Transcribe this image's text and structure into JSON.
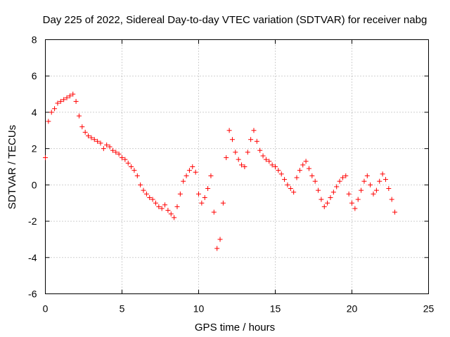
{
  "chart_data": {
    "type": "scatter",
    "title": "Day 225 of 2022, Sidereal Day-to-day VTEC variation (SDTVAR) for receiver nabg",
    "xlabel": "GPS time / hours",
    "ylabel": "SDTVAR / TECUs",
    "xlim": [
      0,
      25
    ],
    "ylim": [
      -6,
      8
    ],
    "xticks": [
      0,
      5,
      10,
      15,
      20,
      25
    ],
    "yticks": [
      -6,
      -4,
      -2,
      0,
      2,
      4,
      6,
      8
    ],
    "grid": true,
    "marker": "+",
    "marker_color": "#ff0000",
    "series": [
      {
        "name": "SDTVAR",
        "x": [
          0.0,
          0.2,
          0.4,
          0.6,
          0.8,
          1.0,
          1.2,
          1.4,
          1.6,
          1.8,
          2.0,
          2.2,
          2.4,
          2.6,
          2.8,
          3.0,
          3.2,
          3.4,
          3.6,
          3.8,
          4.0,
          4.2,
          4.4,
          4.6,
          4.8,
          5.0,
          5.2,
          5.4,
          5.6,
          5.8,
          6.0,
          6.2,
          6.4,
          6.6,
          6.8,
          7.0,
          7.2,
          7.4,
          7.6,
          7.8,
          8.0,
          8.2,
          8.4,
          8.6,
          8.8,
          9.0,
          9.2,
          9.4,
          9.6,
          9.8,
          10.0,
          10.2,
          10.4,
          10.6,
          10.8,
          11.0,
          11.2,
          11.4,
          11.6,
          11.8,
          12.0,
          12.2,
          12.4,
          12.6,
          12.8,
          13.0,
          13.2,
          13.4,
          13.6,
          13.8,
          14.0,
          14.2,
          14.4,
          14.6,
          14.8,
          15.0,
          15.2,
          15.4,
          15.6,
          15.8,
          16.0,
          16.2,
          16.4,
          16.6,
          16.8,
          17.0,
          17.2,
          17.4,
          17.6,
          17.8,
          18.0,
          18.2,
          18.4,
          18.6,
          18.8,
          19.0,
          19.2,
          19.4,
          19.6,
          19.8,
          20.0,
          20.2,
          20.4,
          20.6,
          20.8,
          21.0,
          21.2,
          21.4,
          21.6,
          21.8,
          22.0,
          22.2,
          22.4,
          22.6,
          22.8
        ],
        "y": [
          1.5,
          3.5,
          4.0,
          4.2,
          4.5,
          4.6,
          4.7,
          4.8,
          4.9,
          5.0,
          4.6,
          3.8,
          3.2,
          2.9,
          2.7,
          2.6,
          2.5,
          2.4,
          2.3,
          2.0,
          2.2,
          2.1,
          1.9,
          1.8,
          1.7,
          1.5,
          1.4,
          1.2,
          1.0,
          0.8,
          0.5,
          0.0,
          -0.3,
          -0.5,
          -0.7,
          -0.8,
          -1.0,
          -1.2,
          -1.3,
          -1.1,
          -1.4,
          -1.6,
          -1.8,
          -1.2,
          -0.5,
          0.2,
          0.5,
          0.8,
          1.0,
          0.7,
          -0.5,
          -1.0,
          -0.7,
          -0.2,
          0.5,
          -1.5,
          -3.5,
          -3.0,
          -1.0,
          1.5,
          3.0,
          2.5,
          1.8,
          1.4,
          1.1,
          1.0,
          1.8,
          2.5,
          3.0,
          2.4,
          1.9,
          1.6,
          1.4,
          1.3,
          1.1,
          1.0,
          0.8,
          0.6,
          0.3,
          0.0,
          -0.2,
          -0.4,
          0.4,
          0.8,
          1.1,
          1.3,
          0.9,
          0.5,
          0.2,
          -0.3,
          -0.8,
          -1.2,
          -1.0,
          -0.7,
          -0.4,
          -0.1,
          0.2,
          0.4,
          0.5,
          -0.5,
          -1.0,
          -1.3,
          -0.8,
          -0.3,
          0.2,
          0.5,
          0.0,
          -0.5,
          -0.3,
          0.2,
          0.6,
          0.3,
          -0.2,
          -0.8,
          -1.5
        ]
      }
    ]
  }
}
